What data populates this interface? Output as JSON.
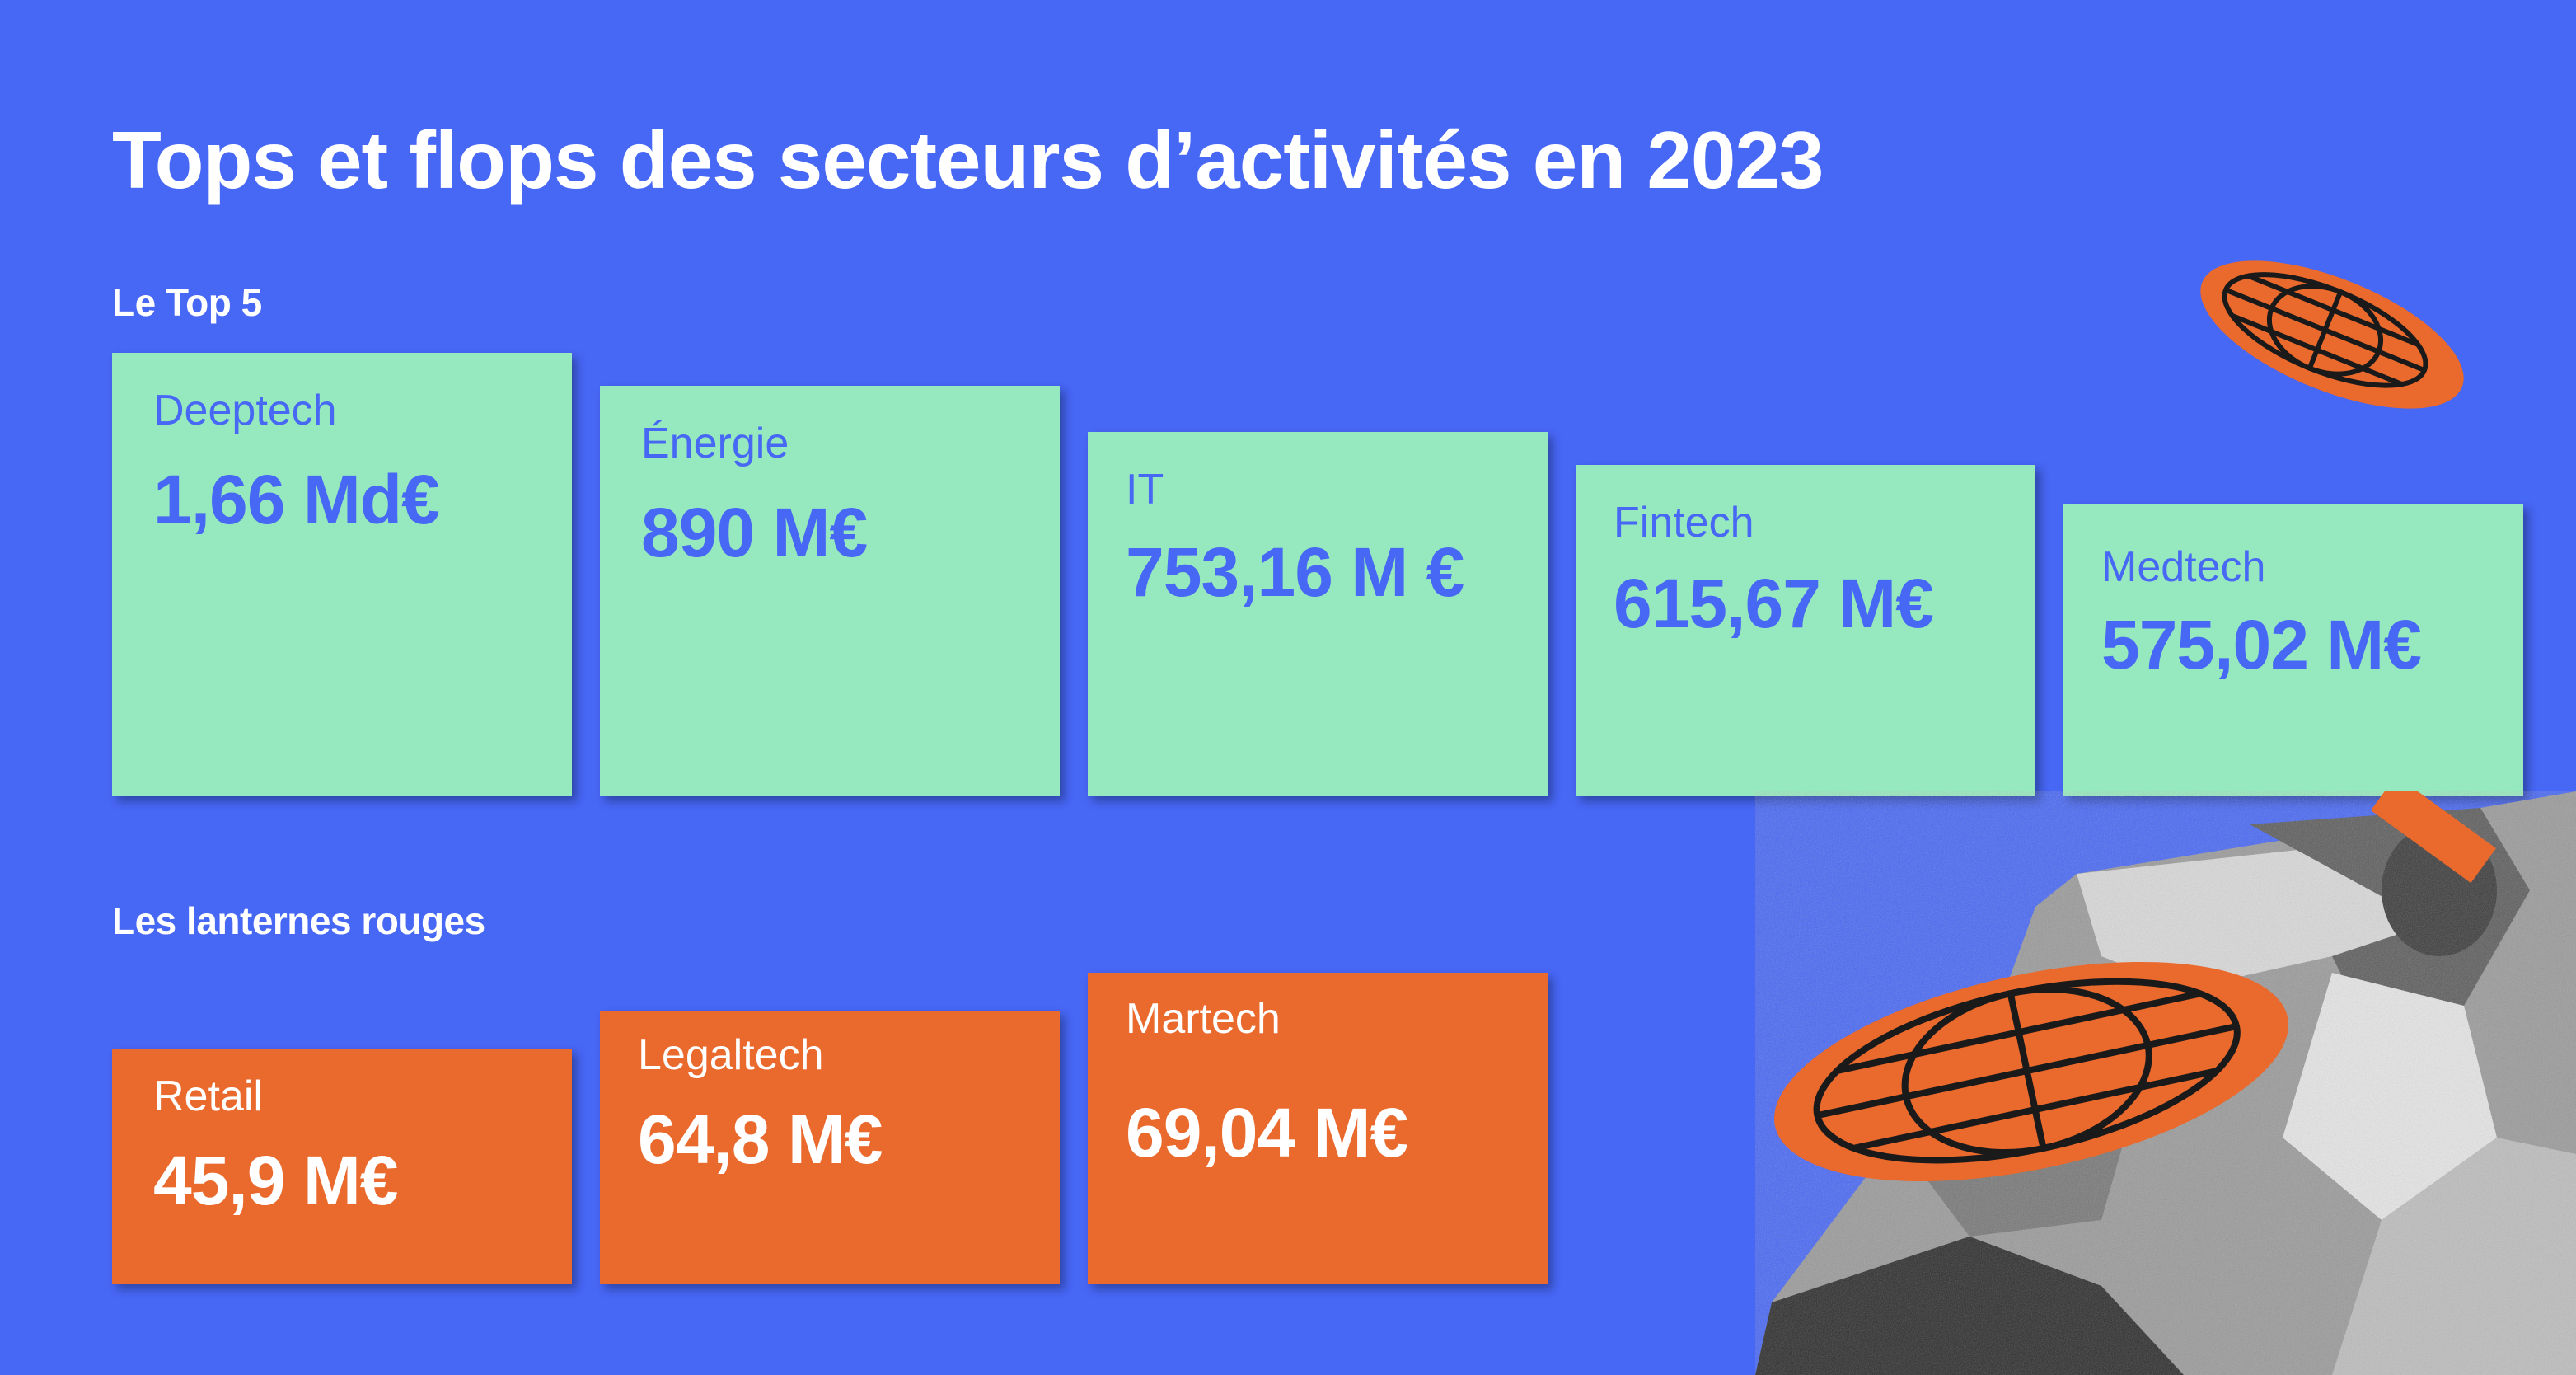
{
  "title": "Tops et flops des secteurs d’activités en 2023",
  "top_section": {
    "label": "Le Top 5",
    "cards": [
      {
        "name": "Deeptech",
        "amount": "1,66 Md€"
      },
      {
        "name": "Énergie",
        "amount": "890 M€"
      },
      {
        "name": "IT",
        "amount": "753,16 M €"
      },
      {
        "name": "Fintech",
        "amount": "615,67 M€"
      },
      {
        "name": "Medtech",
        "amount": "575,02 M€"
      }
    ]
  },
  "flop_section": {
    "label": "Les lanternes rouges",
    "cards": [
      {
        "name": "Retail",
        "amount": "45,9 M€"
      },
      {
        "name": "Legaltech",
        "amount": "64,8 M€"
      },
      {
        "name": "Martech",
        "amount": "69,04 M€"
      }
    ]
  },
  "colors": {
    "background": "#4767F5",
    "top_card": "#96E9BE",
    "flop_card": "#EA692C",
    "accent": "#EA692C"
  },
  "decorations": [
    "globe-icon",
    "globe-icon",
    "newspaper-reader-photo"
  ]
}
